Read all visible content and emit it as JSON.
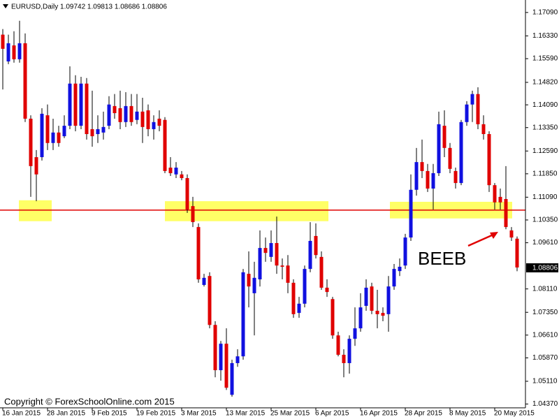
{
  "chart_data": {
    "type": "candlestick",
    "title": "EURUSD,Daily  1.09742 1.09813 1.08686 1.08806",
    "categories": [
      "16 Jan 2015",
      null,
      null,
      null,
      null,
      null,
      null,
      null,
      "28 Jan 2015",
      null,
      null,
      null,
      null,
      null,
      null,
      null,
      "9 Feb 2015",
      null,
      null,
      null,
      null,
      null,
      null,
      null,
      "19 Feb 2015",
      null,
      null,
      null,
      null,
      null,
      null,
      null,
      "3 Mar 2015",
      null,
      null,
      null,
      null,
      null,
      null,
      null,
      "13 Mar 2015",
      null,
      null,
      null,
      null,
      null,
      null,
      null,
      "25 Mar 2015",
      null,
      null,
      null,
      null,
      null,
      null,
      null,
      "6 Apr 2015",
      null,
      null,
      null,
      null,
      null,
      null,
      null,
      "16 Apr 2015",
      null,
      null,
      null,
      null,
      null,
      null,
      null,
      "28 Apr 2015",
      null,
      null,
      null,
      null,
      null,
      null,
      null,
      "8 May 2015",
      null,
      null,
      null,
      null,
      null,
      null,
      null,
      "20 May 2015",
      null,
      null,
      null,
      null
    ],
    "open": [
      1.1637,
      1.155,
      1.1602,
      1.1557,
      1.1609,
      1.1364,
      1.1239,
      1.1239,
      1.1375,
      1.1285,
      1.1319,
      1.1307,
      1.1341,
      1.1478,
      1.1341,
      1.1478,
      1.133,
      1.1314,
      1.1319,
      1.1341,
      1.1405,
      1.1398,
      1.1353,
      1.1405,
      1.136,
      1.1387,
      1.1391,
      1.133,
      1.1364,
      1.136,
      1.1205,
      1.1183,
      1.1183,
      1.1171,
      1.108,
      1.1012,
      1.0824,
      1.0853,
      1.0694,
      1.0547,
      1.0633,
      1.0467,
      1.057,
      1.0592,
      1.086,
      1.0797,
      1.0842,
      1.0944,
      1.0915,
      1.096,
      1.0887,
      1.0887,
      1.0831,
      1.0733,
      1.0763,
      1.0876,
      1.0983,
      1.0915,
      1.0815,
      1.0778,
      1.066,
      1.0597,
      1.057,
      1.0649,
      1.0683,
      1.0756,
      1.0819,
      1.074,
      1.0733,
      1.0729,
      1.0819,
      1.0869,
      1.0887,
      1.0978,
      1.1133,
      1.1223,
      1.1194,
      1.1137,
      1.1187,
      1.1341,
      1.1269,
      1.1194,
      1.1155,
      1.1353,
      1.141,
      1.1444,
      1.1346,
      1.1314,
      1.1148,
      1.111,
      1.1103,
      1.1001,
      1.09742
    ],
    "high": [
      1.1655,
      1.1637,
      1.1648,
      1.1682,
      1.1641,
      1.1375,
      1.1262,
      1.1398,
      1.141,
      1.1364,
      1.1341,
      1.1375,
      1.1534,
      1.1505,
      1.15,
      1.1496,
      1.1455,
      1.1375,
      1.1387,
      1.1437,
      1.1444,
      1.1455,
      1.145,
      1.1444,
      1.1444,
      1.1432,
      1.141,
      1.1375,
      1.1391,
      1.1369,
      1.1239,
      1.1223,
      1.1194,
      1.1183,
      1.111,
      1.1024,
      1.086,
      1.0865,
      1.0706,
      1.0642,
      1.0683,
      1.0581,
      1.0615,
      1.0876,
      1.0933,
      1.0899,
      1.1001,
      1.0978,
      1.1001,
      1.1046,
      1.091,
      1.0921,
      1.0842,
      1.0785,
      1.0887,
      1.1028,
      1.1024,
      1.0933,
      1.0842,
      1.0785,
      1.0672,
      1.0615,
      1.066,
      1.0751,
      1.0797,
      1.0842,
      1.0831,
      1.0808,
      1.0751,
      1.0853,
      1.0892,
      1.091,
      1.099,
      1.1183,
      1.1269,
      1.1296,
      1.1217,
      1.1217,
      1.1387,
      1.1391,
      1.1285,
      1.1205,
      1.136,
      1.1421,
      1.1455,
      1.1466,
      1.1375,
      1.1323,
      1.1155,
      1.1137,
      1.121,
      1.1012,
      1.09813
    ],
    "low": [
      1.1459,
      1.1541,
      1.1546,
      1.1546,
      1.1353,
      1.111,
      1.1096,
      1.1228,
      1.1262,
      1.1262,
      1.1273,
      1.1301,
      1.133,
      1.1323,
      1.133,
      1.1296,
      1.1273,
      1.1285,
      1.1296,
      1.133,
      1.1364,
      1.133,
      1.1337,
      1.1341,
      1.1346,
      1.1285,
      1.1307,
      1.1296,
      1.1323,
      1.1187,
      1.1178,
      1.1171,
      1.1164,
      1.1058,
      1.1012,
      1.0831,
      1.0819,
      1.0683,
      1.0524,
      1.0513,
      1.0483,
      1.0461,
      1.0558,
      1.0581,
      1.0751,
      1.066,
      1.0819,
      1.0899,
      1.0899,
      1.086,
      1.0842,
      1.0797,
      1.0717,
      1.0717,
      1.0751,
      1.0865,
      1.091,
      1.0808,
      1.0785,
      1.0649,
      1.0592,
      1.0524,
      1.0536,
      1.0626,
      1.0672,
      1.074,
      1.0729,
      1.0683,
      1.0706,
      1.0672,
      1.0808,
      1.0853,
      1.0876,
      1.0967,
      1.1114,
      1.1171,
      1.1126,
      1.1069,
      1.1178,
      1.1239,
      1.1187,
      1.1137,
      1.1148,
      1.1341,
      1.1353,
      1.133,
      1.1296,
      1.1126,
      1.1069,
      1.1069,
      1.1005,
      1.0967,
      1.08686
    ],
    "close": [
      1.1591,
      1.1609,
      1.1557,
      1.1609,
      1.1364,
      1.121,
      1.1183,
      1.138,
      1.1285,
      1.1319,
      1.1285,
      1.1341,
      1.1478,
      1.1341,
      1.1478,
      1.1314,
      1.1307,
      1.133,
      1.1337,
      1.141,
      1.1382,
      1.1353,
      1.1405,
      1.1353,
      1.1387,
      1.1337,
      1.133,
      1.1353,
      1.1341,
      1.1194,
      1.1187,
      1.1205,
      1.1171,
      1.1069,
      1.1028,
      1.0842,
      1.0847,
      1.0694,
      1.0547,
      1.0633,
      1.049,
      1.057,
      1.0592,
      1.0865,
      1.0819,
      1.0847,
      1.0944,
      1.0928,
      1.096,
      1.0887,
      1.0883,
      1.0831,
      1.0729,
      1.0763,
      1.0876,
      1.0967,
      1.0921,
      1.0815,
      1.0801,
      1.066,
      1.0597,
      1.057,
      1.0649,
      1.0683,
      1.0751,
      1.0815,
      1.074,
      1.0729,
      1.0724,
      1.0819,
      1.0876,
      1.0883,
      1.0978,
      1.1133,
      1.1223,
      1.1194,
      1.1137,
      1.1187,
      1.1346,
      1.1269,
      1.1201,
      1.1155,
      1.1353,
      1.141,
      1.1444,
      1.1346,
      1.1314,
      1.1148,
      1.1092,
      1.1092,
      1.1012,
      1.0978,
      1.08806
    ],
    "up_color": "#1010e0",
    "down_color": "#e00000",
    "ylim": [
      1.0427,
      1.1745
    ],
    "yticks": [
      {
        "value": 1.1709,
        "label": "1.17090"
      },
      {
        "value": 1.1633,
        "label": "1.16330"
      },
      {
        "value": 1.1559,
        "label": "1.15590"
      },
      {
        "value": 1.1482,
        "label": "1.14820"
      },
      {
        "value": 1.1409,
        "label": "1.14090"
      },
      {
        "value": 1.1335,
        "label": "1.13350"
      },
      {
        "value": 1.1259,
        "label": "1.12590"
      },
      {
        "value": 1.1185,
        "label": "1.11850"
      },
      {
        "value": 1.1109,
        "label": "1.11090"
      },
      {
        "value": 1.1035,
        "label": "1.10350"
      },
      {
        "value": 1.0961,
        "label": "1.09610"
      },
      {
        "value": 1.0811,
        "label": "1.08110"
      },
      {
        "value": 1.0735,
        "label": "1.07350"
      },
      {
        "value": 1.0661,
        "label": "1.06610"
      },
      {
        "value": 1.0587,
        "label": "1.05870"
      },
      {
        "value": 1.0511,
        "label": "1.05110"
      },
      {
        "value": 1.0437,
        "label": "1.04370"
      }
    ],
    "current_price": {
      "value": 1.08806,
      "label": "1.08806"
    },
    "level": 1.1067,
    "level_color": "#e00000",
    "zones": [
      {
        "top": 1.1099,
        "bottom": 1.1031
      },
      {
        "top": 1.1096,
        "bottom": 1.1031
      },
      {
        "top": 1.1094,
        "bottom": 1.104
      }
    ],
    "zone_color": "#ffff66",
    "annotation": "BEEB",
    "copyright": "Copyright © ForexSchoolOnline.com 2015"
  }
}
